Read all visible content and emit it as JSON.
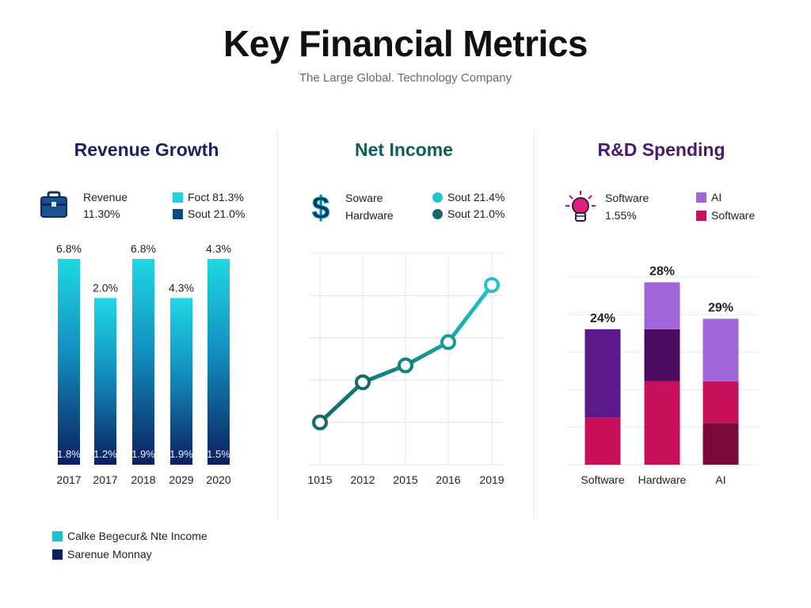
{
  "header": {
    "title": "Key Financial Metrics",
    "subtitle": "The Large Global. Technology Company"
  },
  "panels": {
    "revenue": {
      "title": "Revenue Growth",
      "legend_label": "Revenue",
      "legend_value": "11.30%",
      "legend_items": [
        "Foct 81.3%",
        "Sout 21.0%"
      ],
      "icon": "briefcase-icon"
    },
    "net_income": {
      "title": "Net Income",
      "legend_label_1": "Soware",
      "legend_label_2": "Hardware",
      "legend_items": [
        "Sout 21.4%",
        "Sout 21.0%"
      ],
      "icon": "dollar-icon"
    },
    "rd": {
      "title": "R&D Spending",
      "legend_label": "Software",
      "legend_value": "1.55%",
      "legend_items": [
        "AI",
        "Software"
      ],
      "icon": "lightbulb-icon"
    }
  },
  "bottom_legend": [
    "Calke Begecur& Nte Income",
    "Sarenue Monnay"
  ],
  "colors": {
    "revenue_title": "#16235e",
    "net_income_title": "#0c5e5a",
    "rd_title": "#4a1a6e",
    "cyan": "#1fd3e0",
    "navy": "#0b1f5e",
    "teal_dark": "#156b68",
    "teal_light": "#20c4c8",
    "purple_dark": "#5a1a8a",
    "purple_light": "#a066d8",
    "magenta": "#c8105a",
    "maroon": "#7a0a3a",
    "deep_purple": "#4a0a5e"
  },
  "chart_data": [
    {
      "type": "bar",
      "categories": [
        "2017",
        "2017",
        "2018",
        "2029",
        "2020"
      ],
      "values": [
        6.8,
        2.0,
        6.8,
        4.3,
        4.3
      ],
      "top_labels": [
        "6.8%",
        "2.0%",
        "6.8%",
        "4.3%",
        "4.3%"
      ],
      "bottom_labels": [
        "1.8%",
        "1.2%",
        "1.9%",
        "1.9%",
        "1.5%"
      ],
      "relative_heights": [
        1.0,
        0.81,
        1.0,
        0.81,
        1.0
      ]
    },
    {
      "type": "line",
      "x": [
        "1015",
        "2012",
        "2015",
        "2016",
        "2019"
      ],
      "values": [
        1.0,
        1.95,
        2.35,
        2.9,
        4.25
      ],
      "ylim": [
        0,
        5
      ]
    },
    {
      "type": "bar",
      "stacked": true,
      "categories": [
        "Software",
        "Hardware",
        "AI"
      ],
      "top_labels": [
        "24%",
        "28%",
        "29%"
      ],
      "series": [
        {
          "name": "Software",
          "values": [
            9,
            16,
            8
          ],
          "color": "#c8105a"
        },
        {
          "name": "",
          "values": [
            17,
            10,
            0
          ],
          "color": "#5a1a8a"
        },
        {
          "name": "AI",
          "values": [
            0,
            9,
            12
          ],
          "color": "#a066d8"
        }
      ],
      "bottom_series": {
        "values": [
          0,
          0,
          8
        ],
        "color": "#7a0a3a"
      },
      "ylim": [
        0,
        36
      ]
    }
  ]
}
